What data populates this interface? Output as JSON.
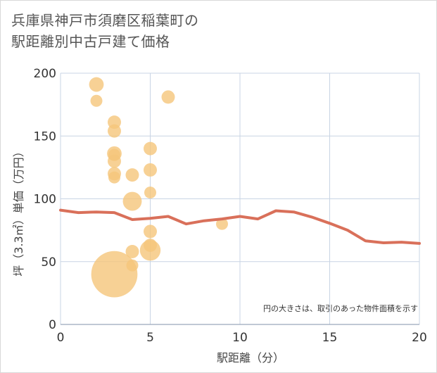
{
  "title_line1": "兵庫県神戸市須磨区稲葉町の",
  "title_line2": "駅距離別中古戸建て価格",
  "note": "円の大きさは、取引のあった物件面積を示す",
  "colors": {
    "bubble": "#f5c67a",
    "line": "#d9705a",
    "grid": "#c8d4e4"
  },
  "chart_data": {
    "type": "scatter",
    "xlabel": "駅距離（分）",
    "ylabel": "坪（3.3㎡）単価（万円）",
    "xlim": [
      0,
      20
    ],
    "ylim": [
      0,
      200
    ],
    "xticks": [
      0,
      5,
      10,
      15,
      20
    ],
    "yticks": [
      0,
      50,
      100,
      150,
      200
    ],
    "grid": true,
    "bubbles": [
      {
        "x": 2,
        "y": 191,
        "size": 3
      },
      {
        "x": 2,
        "y": 178,
        "size": 2
      },
      {
        "x": 3,
        "y": 161,
        "size": 2.5
      },
      {
        "x": 3,
        "y": 154,
        "size": 2.5
      },
      {
        "x": 3,
        "y": 136,
        "size": 3
      },
      {
        "x": 3,
        "y": 135,
        "size": 2
      },
      {
        "x": 3,
        "y": 130,
        "size": 2.5
      },
      {
        "x": 3,
        "y": 120,
        "size": 2.5
      },
      {
        "x": 3,
        "y": 117,
        "size": 2
      },
      {
        "x": 3,
        "y": 40,
        "size": 30
      },
      {
        "x": 4,
        "y": 119,
        "size": 2.5
      },
      {
        "x": 4,
        "y": 98,
        "size": 5
      },
      {
        "x": 4,
        "y": 58,
        "size": 2.5
      },
      {
        "x": 4,
        "y": 47,
        "size": 2
      },
      {
        "x": 5,
        "y": 140,
        "size": 2.5
      },
      {
        "x": 5,
        "y": 123,
        "size": 2.5
      },
      {
        "x": 5,
        "y": 105,
        "size": 2
      },
      {
        "x": 5,
        "y": 74,
        "size": 2.5
      },
      {
        "x": 5,
        "y": 63,
        "size": 2.5
      },
      {
        "x": 5,
        "y": 59,
        "size": 6
      },
      {
        "x": 6,
        "y": 181,
        "size": 2.5
      },
      {
        "x": 9,
        "y": 80,
        "size": 2
      }
    ],
    "line": {
      "x": [
        0,
        1,
        2,
        3,
        4,
        5,
        6,
        7,
        8,
        9,
        10,
        11,
        12,
        13,
        14,
        15,
        16,
        17,
        18,
        19,
        20
      ],
      "y": [
        91,
        89,
        89.5,
        89,
        83.5,
        84.5,
        86,
        80,
        82.5,
        84,
        86,
        84,
        90.5,
        89.5,
        85.5,
        80.5,
        75,
        66.5,
        65,
        65.5,
        64.5
      ]
    }
  }
}
